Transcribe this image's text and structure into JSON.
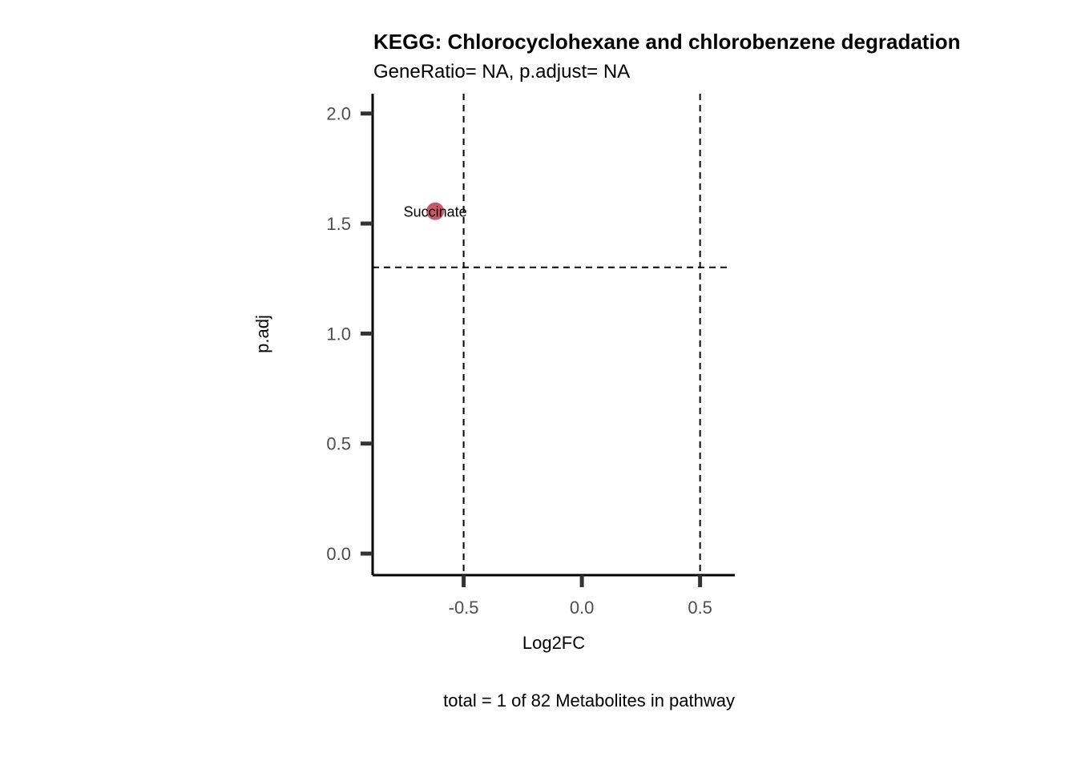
{
  "chart_data": {
    "type": "scatter",
    "title": "KEGG: Chlorocyclohexane and chlorobenzene degradation",
    "subtitle": "GeneRatio= NA, p.adjust= NA",
    "xlabel": "Log2FC",
    "ylabel": "p.adj",
    "caption": "total = 1 of 82 Metabolites in pathway",
    "xlim": [
      -0.885,
      0.647
    ],
    "ylim": [
      -0.098,
      2.09
    ],
    "xticks": [
      -0.5,
      0.0,
      0.5
    ],
    "xtick_labels": [
      "-0.5",
      "0.0",
      "0.5"
    ],
    "yticks": [
      0.0,
      0.5,
      1.0,
      1.5,
      2.0
    ],
    "ytick_labels": [
      "0.0",
      "0.5",
      "1.0",
      "1.5",
      "2.0"
    ],
    "vlines": [
      -0.5,
      0.5
    ],
    "hlines": [
      1.301
    ],
    "grid": false,
    "points": [
      {
        "label": "Succinate",
        "x": -0.62,
        "y": 1.556,
        "color": "#c85a6e"
      }
    ]
  }
}
